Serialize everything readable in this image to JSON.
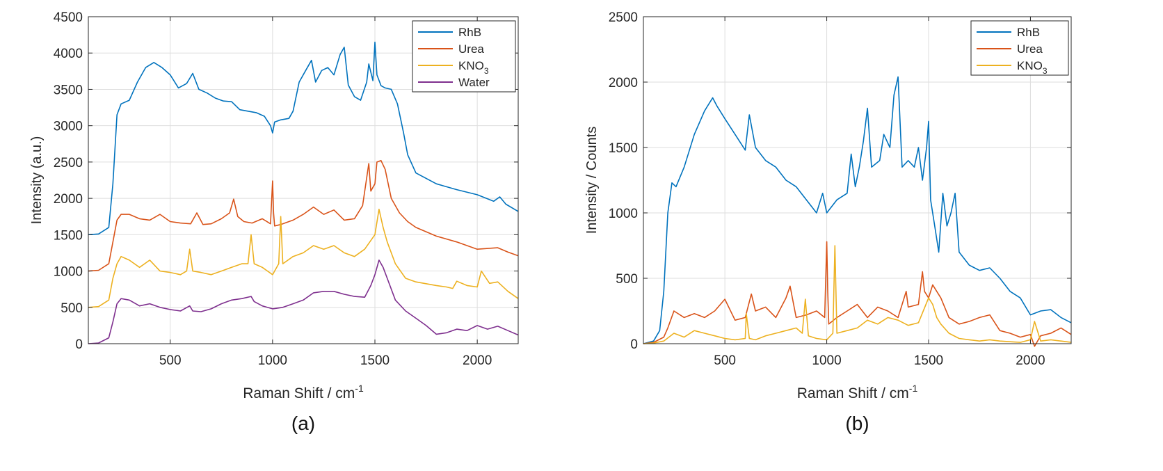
{
  "colors": {
    "rhb": "#0072BD",
    "urea": "#D95319",
    "kno3": "#EDB120",
    "water": "#7E2F8E",
    "axis": "#262626",
    "grid": "#dedede",
    "legend_border": "#262626"
  },
  "chart_data": [
    {
      "type": "line",
      "panel_label": "(a)",
      "title": "",
      "xlabel": "Raman Shift / cm",
      "xlabel_sup": "-1",
      "ylabel": "Intensity (a.u.)",
      "xlim": [
        100,
        2200
      ],
      "ylim": [
        0,
        4500
      ],
      "xticks": [
        500,
        1000,
        1500,
        2000
      ],
      "xtick_labels": [
        "500",
        "1000",
        "1500",
        "2000"
      ],
      "yticks": [
        0,
        500,
        1000,
        1500,
        2000,
        2500,
        3000,
        3500,
        4000,
        4500
      ],
      "ytick_labels": [
        "0",
        "500",
        "1000",
        "1500",
        "2000",
        "2500",
        "3000",
        "3500",
        "4000",
        "4500"
      ],
      "grid": true,
      "legend_position": "top-right",
      "series": [
        {
          "name": "RhB",
          "legend_main": "RhB",
          "legend_sub": "",
          "color_key": "rhb",
          "x": [
            100,
            150,
            200,
            220,
            240,
            260,
            300,
            340,
            380,
            420,
            460,
            500,
            540,
            580,
            610,
            640,
            680,
            720,
            760,
            800,
            840,
            880,
            920,
            960,
            990,
            1000,
            1010,
            1040,
            1080,
            1100,
            1130,
            1160,
            1190,
            1210,
            1240,
            1270,
            1300,
            1330,
            1350,
            1370,
            1400,
            1430,
            1460,
            1470,
            1490,
            1500,
            1510,
            1530,
            1550,
            1580,
            1610,
            1640,
            1660,
            1700,
            1800,
            1900,
            2000,
            2080,
            2110,
            2140,
            2200
          ],
          "y": [
            1500,
            1510,
            1600,
            2200,
            3150,
            3300,
            3350,
            3600,
            3800,
            3870,
            3800,
            3700,
            3520,
            3580,
            3720,
            3500,
            3450,
            3380,
            3340,
            3330,
            3220,
            3200,
            3180,
            3130,
            3000,
            2900,
            3050,
            3080,
            3100,
            3200,
            3600,
            3750,
            3900,
            3600,
            3760,
            3800,
            3700,
            3980,
            4080,
            3560,
            3400,
            3350,
            3600,
            3850,
            3620,
            4150,
            3700,
            3550,
            3520,
            3500,
            3300,
            2900,
            2600,
            2350,
            2200,
            2120,
            2050,
            1960,
            2020,
            1920,
            1820
          ]
        },
        {
          "name": "Urea",
          "legend_main": "Urea",
          "legend_sub": "",
          "color_key": "urea",
          "x": [
            100,
            150,
            200,
            220,
            240,
            260,
            300,
            350,
            400,
            450,
            500,
            550,
            600,
            630,
            660,
            700,
            750,
            790,
            810,
            830,
            860,
            900,
            950,
            990,
            1000,
            1005,
            1010,
            1040,
            1100,
            1150,
            1200,
            1250,
            1300,
            1350,
            1400,
            1440,
            1470,
            1480,
            1500,
            1510,
            1530,
            1550,
            1580,
            1620,
            1660,
            1700,
            1800,
            1900,
            2000,
            2100,
            2150,
            2200
          ],
          "y": [
            1000,
            1010,
            1100,
            1400,
            1700,
            1780,
            1780,
            1720,
            1700,
            1780,
            1680,
            1660,
            1650,
            1800,
            1640,
            1650,
            1720,
            1800,
            1990,
            1750,
            1680,
            1660,
            1720,
            1650,
            2240,
            1800,
            1620,
            1640,
            1700,
            1780,
            1880,
            1780,
            1840,
            1700,
            1720,
            1900,
            2480,
            2100,
            2200,
            2500,
            2520,
            2400,
            2000,
            1800,
            1680,
            1600,
            1480,
            1400,
            1300,
            1320,
            1260,
            1210
          ]
        },
        {
          "name": "KNO3",
          "legend_main": "KNO",
          "legend_sub": "3",
          "color_key": "kno3",
          "x": [
            100,
            150,
            200,
            220,
            240,
            260,
            300,
            350,
            400,
            450,
            500,
            550,
            580,
            595,
            610,
            650,
            700,
            750,
            800,
            850,
            880,
            895,
            910,
            950,
            1000,
            1030,
            1040,
            1050,
            1100,
            1150,
            1200,
            1250,
            1300,
            1350,
            1400,
            1450,
            1500,
            1520,
            1540,
            1560,
            1600,
            1650,
            1700,
            1800,
            1850,
            1880,
            1900,
            1950,
            2000,
            2020,
            2060,
            2100,
            2150,
            2200
          ],
          "y": [
            500,
            510,
            600,
            900,
            1100,
            1200,
            1150,
            1050,
            1150,
            1000,
            980,
            950,
            1000,
            1300,
            1000,
            980,
            950,
            1000,
            1050,
            1100,
            1100,
            1500,
            1100,
            1050,
            950,
            1100,
            1750,
            1100,
            1200,
            1250,
            1350,
            1300,
            1350,
            1250,
            1200,
            1300,
            1500,
            1850,
            1600,
            1400,
            1100,
            900,
            850,
            800,
            780,
            760,
            860,
            800,
            780,
            1000,
            830,
            850,
            720,
            620
          ]
        },
        {
          "name": "Water",
          "legend_main": "Water",
          "legend_sub": "",
          "color_key": "water",
          "x": [
            100,
            150,
            200,
            220,
            240,
            260,
            300,
            350,
            400,
            450,
            500,
            550,
            595,
            610,
            650,
            700,
            750,
            800,
            850,
            895,
            910,
            950,
            1000,
            1050,
            1100,
            1150,
            1200,
            1250,
            1300,
            1350,
            1400,
            1450,
            1480,
            1500,
            1520,
            1540,
            1560,
            1600,
            1650,
            1700,
            1750,
            1800,
            1850,
            1900,
            1950,
            2000,
            2050,
            2100,
            2150,
            2200
          ],
          "y": [
            0,
            10,
            80,
            300,
            550,
            620,
            600,
            520,
            550,
            500,
            470,
            450,
            520,
            450,
            440,
            480,
            550,
            600,
            620,
            650,
            580,
            520,
            480,
            500,
            550,
            600,
            700,
            720,
            720,
            680,
            650,
            640,
            800,
            950,
            1150,
            1050,
            900,
            600,
            450,
            350,
            250,
            130,
            150,
            200,
            180,
            250,
            200,
            240,
            180,
            120
          ]
        }
      ]
    },
    {
      "type": "line",
      "panel_label": "(b)",
      "title": "",
      "xlabel": "Raman Shift / cm",
      "xlabel_sup": "-1",
      "ylabel": "Intensity / Counts",
      "xlim": [
        100,
        2200
      ],
      "ylim": [
        0,
        2500
      ],
      "xticks": [
        500,
        1000,
        1500,
        2000
      ],
      "xtick_labels": [
        "500",
        "1000",
        "1500",
        "2000"
      ],
      "yticks": [
        0,
        500,
        1000,
        1500,
        2000,
        2500
      ],
      "ytick_labels": [
        "0",
        "500",
        "1000",
        "1500",
        "2000",
        "2500"
      ],
      "grid": true,
      "legend_position": "top-right",
      "series": [
        {
          "name": "RhB",
          "legend_main": "RhB",
          "legend_sub": "",
          "color_key": "rhb",
          "x": [
            100,
            150,
            180,
            200,
            220,
            240,
            260,
            300,
            350,
            400,
            440,
            460,
            500,
            550,
            600,
            620,
            650,
            700,
            750,
            800,
            850,
            900,
            950,
            980,
            1000,
            1050,
            1100,
            1120,
            1140,
            1160,
            1180,
            1200,
            1220,
            1260,
            1280,
            1310,
            1330,
            1350,
            1370,
            1400,
            1430,
            1450,
            1470,
            1490,
            1500,
            1510,
            1530,
            1550,
            1570,
            1590,
            1610,
            1630,
            1650,
            1700,
            1750,
            1800,
            1850,
            1900,
            1950,
            2000,
            2050,
            2100,
            2150,
            2200
          ],
          "y": [
            0,
            20,
            100,
            400,
            1000,
            1230,
            1200,
            1350,
            1600,
            1780,
            1880,
            1820,
            1720,
            1600,
            1480,
            1750,
            1500,
            1400,
            1350,
            1250,
            1200,
            1100,
            1000,
            1150,
            1000,
            1100,
            1150,
            1450,
            1200,
            1350,
            1550,
            1800,
            1350,
            1400,
            1600,
            1500,
            1900,
            2040,
            1350,
            1400,
            1350,
            1500,
            1250,
            1500,
            1700,
            1100,
            900,
            700,
            1150,
            900,
            1000,
            1150,
            700,
            600,
            560,
            580,
            500,
            400,
            350,
            220,
            250,
            260,
            200,
            160
          ]
        },
        {
          "name": "Urea",
          "legend_main": "Urea",
          "legend_sub": "",
          "color_key": "urea",
          "x": [
            100,
            150,
            200,
            220,
            250,
            300,
            350,
            400,
            450,
            500,
            550,
            600,
            630,
            650,
            700,
            750,
            800,
            820,
            850,
            900,
            950,
            990,
            1000,
            1005,
            1010,
            1050,
            1100,
            1150,
            1200,
            1250,
            1300,
            1350,
            1390,
            1400,
            1450,
            1470,
            1480,
            1500,
            1520,
            1540,
            1560,
            1600,
            1650,
            1700,
            1750,
            1800,
            1850,
            1900,
            1950,
            2000,
            2020,
            2050,
            2100,
            2150,
            2200
          ],
          "y": [
            0,
            10,
            50,
            120,
            250,
            200,
            230,
            200,
            250,
            340,
            180,
            200,
            380,
            250,
            280,
            200,
            350,
            440,
            200,
            220,
            250,
            200,
            780,
            400,
            150,
            200,
            250,
            300,
            200,
            280,
            250,
            200,
            400,
            280,
            300,
            550,
            400,
            350,
            450,
            400,
            350,
            200,
            150,
            170,
            200,
            220,
            100,
            80,
            50,
            70,
            -20,
            60,
            80,
            120,
            70
          ]
        },
        {
          "name": "KNO3",
          "legend_main": "KNO",
          "legend_sub": "3",
          "color_key": "kno3",
          "x": [
            100,
            150,
            200,
            250,
            300,
            350,
            400,
            450,
            500,
            550,
            600,
            605,
            620,
            650,
            700,
            750,
            800,
            850,
            880,
            895,
            910,
            950,
            1000,
            1030,
            1040,
            1050,
            1100,
            1150,
            1200,
            1250,
            1300,
            1350,
            1400,
            1450,
            1500,
            1520,
            1540,
            1560,
            1600,
            1650,
            1700,
            1750,
            1800,
            1850,
            1900,
            1950,
            2000,
            2020,
            2050,
            2100,
            2150,
            2200
          ],
          "y": [
            0,
            5,
            20,
            80,
            50,
            100,
            80,
            60,
            40,
            30,
            40,
            230,
            40,
            30,
            60,
            80,
            100,
            120,
            80,
            340,
            60,
            40,
            30,
            80,
            750,
            80,
            100,
            120,
            180,
            150,
            200,
            180,
            140,
            160,
            350,
            300,
            200,
            150,
            80,
            40,
            30,
            20,
            30,
            20,
            15,
            10,
            30,
            170,
            20,
            30,
            20,
            10
          ]
        }
      ]
    }
  ]
}
